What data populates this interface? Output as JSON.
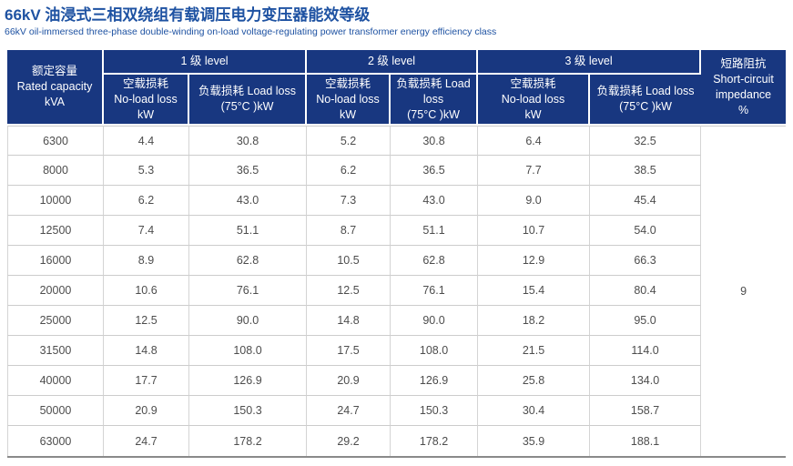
{
  "page": {
    "title": "66kV 油浸式三相双绕组有载调压电力变压器能效等级",
    "subtitle": "66kV oil-immersed three-phase double-winding on-load voltage-regulating power transformer energy efficiency class"
  },
  "colors": {
    "header_bg": "#183780",
    "title_blue": "#1e52a2",
    "cell_text": "#4d4d4d",
    "grid_line": "#cccccc",
    "table_bottom_border": "#8a8a8a"
  },
  "table": {
    "header": {
      "rated_capacity": "额定容量\nRated capacity\nkVA",
      "level1": "1 级 level",
      "level2": "2 级 level",
      "level3": "3 级 level",
      "no_load_loss": "空载损耗\nNo-load loss\nkW",
      "load_loss_wide": "负载损耗 Load loss\n(75°C )kW",
      "load_loss_narrow": "负载损耗 Load\nloss\n(75°C )kW",
      "short_circuit_impedance": "短路阻抗\nShort-circuit\nimpedance\n%"
    },
    "short_circuit_impedance_value": "9",
    "rows": [
      {
        "capacity": "6300",
        "values": [
          "4.4",
          "30.8",
          "5.2",
          "30.8",
          "6.4",
          "32.5"
        ]
      },
      {
        "capacity": "8000",
        "values": [
          "5.3",
          "36.5",
          "6.2",
          "36.5",
          "7.7",
          "38.5"
        ]
      },
      {
        "capacity": "10000",
        "values": [
          "6.2",
          "43.0",
          "7.3",
          "43.0",
          "9.0",
          "45.4"
        ]
      },
      {
        "capacity": "12500",
        "values": [
          "7.4",
          "51.1",
          "8.7",
          "51.1",
          "10.7",
          "54.0"
        ]
      },
      {
        "capacity": "16000",
        "values": [
          "8.9",
          "62.8",
          "10.5",
          "62.8",
          "12.9",
          "66.3"
        ]
      },
      {
        "capacity": "20000",
        "values": [
          "10.6",
          "76.1",
          "12.5",
          "76.1",
          "15.4",
          "80.4"
        ]
      },
      {
        "capacity": "25000",
        "values": [
          "12.5",
          "90.0",
          "14.8",
          "90.0",
          "18.2",
          "95.0"
        ]
      },
      {
        "capacity": "31500",
        "values": [
          "14.8",
          "108.0",
          "17.5",
          "108.0",
          "21.5",
          "114.0"
        ]
      },
      {
        "capacity": "40000",
        "values": [
          "17.7",
          "126.9",
          "20.9",
          "126.9",
          "25.8",
          "134.0"
        ]
      },
      {
        "capacity": "50000",
        "values": [
          "20.9",
          "150.3",
          "24.7",
          "150.3",
          "30.4",
          "158.7"
        ]
      },
      {
        "capacity": "63000",
        "values": [
          "24.7",
          "178.2",
          "29.2",
          "178.2",
          "35.9",
          "188.1"
        ]
      }
    ]
  }
}
